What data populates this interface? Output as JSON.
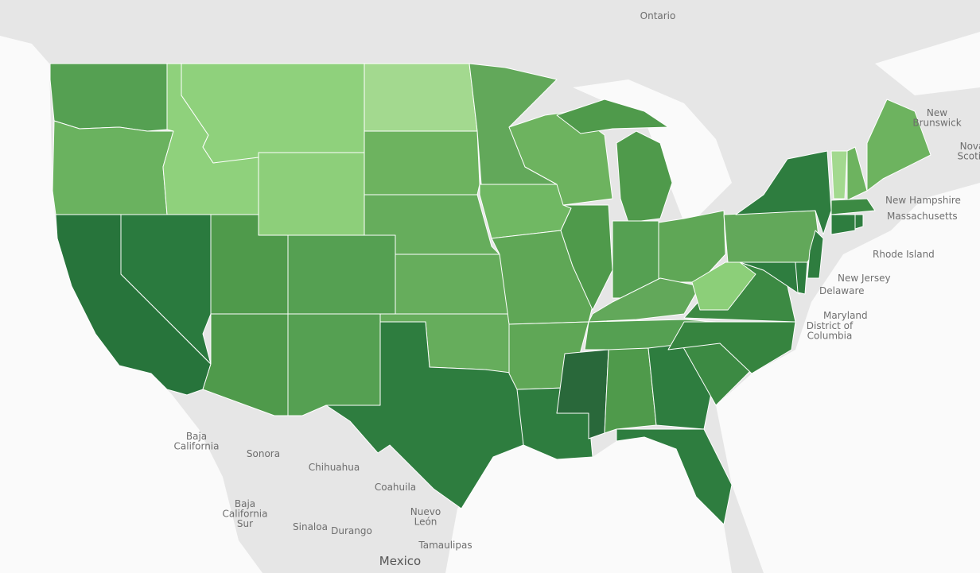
{
  "map": {
    "region_colors": [
      "#55a052",
      "#6ab25f",
      "#27743b",
      "#2a7a3e",
      "#8fd17c",
      "#8fd17c",
      "#8dcf7a",
      "#4f9a4b",
      "#55a052",
      "#4f9a4b",
      "#55a052",
      "#a3d98f",
      "#6db35f",
      "#66ad5c",
      "#66ad5c",
      "#66ad5c",
      "#2e7d3f",
      "#62a85a",
      "#70b863",
      "#5fa756",
      "#5fa756",
      "#2e7d3f",
      "#6db35f",
      "#4f9a4b",
      "#4f9a4b",
      "#4f9a4b",
      "#55a052",
      "#5fa756",
      "#62a85a",
      "#55a052",
      "#29683a",
      "#4f9a4b",
      "#2e7d3f",
      "#2e7d3f",
      "#3c8a43",
      "#36843f",
      "#3c8a43",
      "#8ccf79",
      "#62a85a",
      "#2e7d3f",
      "#2e7d3f",
      "#2e7d3f",
      "#2e7d3f",
      "#a3d98f",
      "#6db35f",
      "#6db35f",
      "#3c8a43",
      "#2e7d3f",
      "#2e7d3f"
    ],
    "labels": [
      {
        "lines": [
          "Ontario"
        ]
      },
      {
        "lines": [
          "New",
          "Brunswick"
        ]
      },
      {
        "lines": [
          "Nova",
          "Scotia"
        ]
      },
      {
        "lines": [
          "New Hampshire"
        ]
      },
      {
        "lines": [
          "Massachusetts"
        ]
      },
      {
        "lines": [
          "Rhode Island"
        ]
      },
      {
        "lines": [
          "New Jersey"
        ]
      },
      {
        "lines": [
          "Delaware"
        ]
      },
      {
        "lines": [
          "Maryland"
        ]
      },
      {
        "lines": [
          "District of",
          "Columbia"
        ]
      },
      {
        "lines": [
          "Baja",
          "California"
        ]
      },
      {
        "lines": [
          "Sonora"
        ]
      },
      {
        "lines": [
          "Chihuahua"
        ]
      },
      {
        "lines": [
          "Coahuila"
        ]
      },
      {
        "lines": [
          "Nuevo",
          "León"
        ]
      },
      {
        "lines": [
          "Baja",
          "California",
          "Sur"
        ]
      },
      {
        "lines": [
          "Sinaloa"
        ]
      },
      {
        "lines": [
          "Durango"
        ]
      },
      {
        "lines": [
          "Tamaulipas"
        ]
      },
      {
        "lines": [
          "Mexico"
        ]
      }
    ]
  }
}
